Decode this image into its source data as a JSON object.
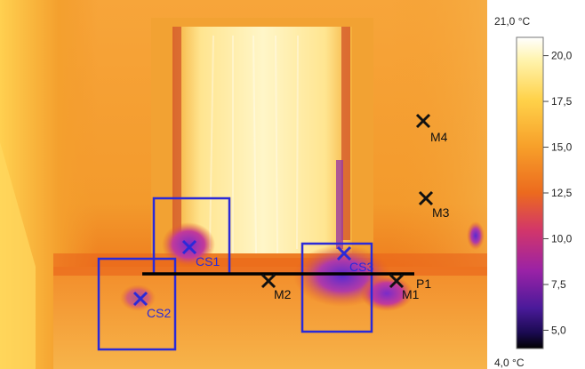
{
  "scale": {
    "max_label": "21,0 °C",
    "min_label": "4,0 °C",
    "ticks": [
      {
        "label": "20,0",
        "value": 20.0
      },
      {
        "label": "17,5",
        "value": 17.5
      },
      {
        "label": "15,0",
        "value": 15.0
      },
      {
        "label": "12,5",
        "value": 12.5
      },
      {
        "label": "10,0",
        "value": 10.0
      },
      {
        "label": "7,5",
        "value": 7.5
      },
      {
        "label": "5,0",
        "value": 5.0
      }
    ]
  },
  "markers": {
    "M1": "M1",
    "M2": "M2",
    "M3": "M3",
    "M4": "M4",
    "CS1": "CS1",
    "CS2": "CS2",
    "CS3": "CS3",
    "P1": "P1"
  },
  "colors": {
    "marker_blue": "#2a2ad8",
    "marker_black": "#111111",
    "profile_line": "#000000"
  }
}
